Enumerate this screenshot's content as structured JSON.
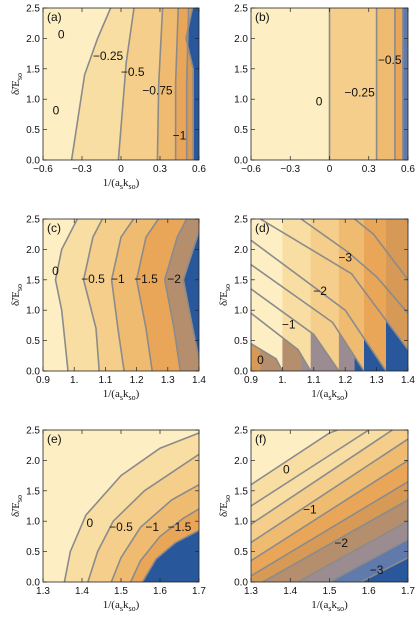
{
  "chart_data": [
    {
      "type": "contour",
      "panel_label": "(a)",
      "xlabel": "1/(a_s k_so)",
      "ylabel": "δ̃/E_so",
      "xlim": [
        -0.6,
        0.6
      ],
      "ylim": [
        0.0,
        2.5
      ],
      "xticks": [
        "-0.6",
        "-0.3",
        "0",
        "0.3",
        "0.6"
      ],
      "yticks": [
        "0.0",
        "0.5",
        "1.0",
        "1.5",
        "2.0",
        "2.5"
      ],
      "contour_levels": [
        "0",
        "0",
        "-0.25",
        "-0.5",
        "-0.75",
        "-1"
      ],
      "boundaries": [
        [
          [
            -0.38,
            0.0
          ],
          [
            -0.33,
            0.7
          ],
          [
            -0.28,
            1.4
          ],
          [
            -0.18,
            2.0
          ],
          [
            -0.08,
            2.5
          ]
        ],
        [
          [
            -0.02,
            0.0
          ],
          [
            0.01,
            0.8
          ],
          [
            0.04,
            1.6
          ],
          [
            0.1,
            2.5
          ]
        ],
        [
          [
            0.28,
            0.0
          ],
          [
            0.29,
            1.25
          ],
          [
            0.32,
            2.5
          ]
        ],
        [
          [
            0.42,
            0.0
          ],
          [
            0.42,
            1.25
          ],
          [
            0.44,
            2.5
          ]
        ],
        [
          [
            0.505,
            0.0
          ],
          [
            0.505,
            1.25
          ],
          [
            0.52,
            2.5
          ]
        ],
        [
          [
            0.555,
            0.0
          ],
          [
            0.555,
            1.5
          ],
          [
            0.5,
            2.0
          ],
          [
            0.55,
            2.5
          ]
        ]
      ]
    },
    {
      "type": "contour",
      "panel_label": "(b)",
      "xlabel": "",
      "ylabel": "",
      "xlim": [
        -0.6,
        0.6
      ],
      "ylim": [
        0.0,
        2.5
      ],
      "xticks": [
        "-0.6",
        "-0.3",
        "0",
        "0.3",
        "0.6"
      ],
      "yticks": [
        "0.0",
        "0.5",
        "1.0",
        "1.5",
        "2.0",
        "2.5"
      ],
      "contour_levels": [
        "0",
        "-0.25",
        "-0.5"
      ],
      "boundaries": [
        [
          [
            0.0,
            0.0
          ],
          [
            0.0,
            2.5
          ]
        ],
        [
          [
            0.36,
            0.0
          ],
          [
            0.36,
            2.5
          ]
        ],
        [
          [
            0.5,
            0.0
          ],
          [
            0.5,
            2.5
          ]
        ],
        [
          [
            0.56,
            0.0
          ],
          [
            0.56,
            2.5
          ]
        ]
      ]
    },
    {
      "type": "contour",
      "panel_label": "(c)",
      "xlabel": "1/(a_s k_so)",
      "ylabel": "δ̃/E_so",
      "xlim": [
        0.9,
        1.4
      ],
      "ylim": [
        0.0,
        2.5
      ],
      "xticks": [
        "0.9",
        "1.",
        "1.1",
        "1.2",
        "1.3",
        "1.4"
      ],
      "yticks": [
        "0.0",
        "0.5",
        "1.0",
        "1.5",
        "2.0",
        "2.5"
      ],
      "contour_levels": [
        "0",
        "-0.5",
        "-1",
        "-1.5",
        "-2"
      ],
      "boundaries": [
        [
          [
            0.98,
            0.0
          ],
          [
            0.96,
            1.0
          ],
          [
            0.94,
            1.5
          ],
          [
            0.96,
            2.0
          ],
          [
            1.01,
            2.5
          ]
        ],
        [
          [
            1.08,
            0.0
          ],
          [
            1.07,
            0.7
          ],
          [
            1.03,
            1.5
          ],
          [
            1.06,
            2.2
          ],
          [
            1.09,
            2.5
          ]
        ],
        [
          [
            1.16,
            0.0
          ],
          [
            1.14,
            0.7
          ],
          [
            1.12,
            1.5
          ],
          [
            1.15,
            2.2
          ],
          [
            1.19,
            2.5
          ]
        ],
        [
          [
            1.25,
            0.0
          ],
          [
            1.23,
            0.7
          ],
          [
            1.2,
            1.5
          ],
          [
            1.23,
            2.2
          ],
          [
            1.27,
            2.5
          ]
        ],
        [
          [
            1.34,
            0.0
          ],
          [
            1.32,
            0.7
          ],
          [
            1.29,
            1.5
          ],
          [
            1.33,
            2.2
          ],
          [
            1.36,
            2.5
          ]
        ],
        [
          [
            1.4,
            0.2
          ],
          [
            1.38,
            0.7
          ],
          [
            1.35,
            1.5
          ],
          [
            1.4,
            2.3
          ]
        ]
      ]
    },
    {
      "type": "contour",
      "panel_label": "(d)",
      "xlabel": "1/(a_s k_so)",
      "ylabel": "δ̃/E_so",
      "xlim": [
        0.9,
        1.4
      ],
      "ylim": [
        0.0,
        2.5
      ],
      "xticks": [
        "0.9",
        "1.",
        "1.1",
        "1.2",
        "1.3",
        "1.4"
      ],
      "yticks": [
        "0.0",
        "0.5",
        "1.0",
        "1.5",
        "2.0",
        "2.5"
      ],
      "contour_levels": [
        "0",
        "-1",
        "-2",
        "-3"
      ],
      "boundaries": [
        [
          [
            0.9,
            0.45
          ],
          [
            0.98,
            0.2
          ],
          [
            1.0,
            0.0
          ]
        ],
        [
          [
            0.9,
            0.95
          ],
          [
            1.05,
            0.35
          ],
          [
            1.09,
            0.0
          ]
        ],
        [
          [
            0.9,
            1.35
          ],
          [
            1.1,
            0.6
          ],
          [
            1.18,
            0.0
          ]
        ],
        [
          [
            0.9,
            1.75
          ],
          [
            1.16,
            0.8
          ],
          [
            1.26,
            0.0
          ]
        ],
        [
          [
            0.9,
            2.15
          ],
          [
            1.2,
            1.0
          ],
          [
            1.33,
            0.0
          ]
        ],
        [
          [
            0.93,
            2.5
          ],
          [
            1.22,
            1.6
          ],
          [
            1.27,
            1.25
          ],
          [
            1.4,
            0.35
          ]
        ],
        [
          [
            1.06,
            2.5
          ],
          [
            1.21,
            1.95
          ],
          [
            1.3,
            1.55
          ],
          [
            1.4,
            0.95
          ]
        ],
        [
          [
            1.23,
            2.5
          ],
          [
            1.29,
            2.25
          ],
          [
            1.4,
            1.5
          ]
        ]
      ]
    },
    {
      "type": "contour",
      "panel_label": "(e)",
      "xlabel": "1/(a_s k_so)",
      "ylabel": "δ̃/E_so",
      "xlim": [
        1.3,
        1.7
      ],
      "ylim": [
        0.0,
        2.5
      ],
      "xticks": [
        "1.3",
        "1.4",
        "1.5",
        "1.6",
        "1.7"
      ],
      "yticks": [
        "0.0",
        "0.5",
        "1.0",
        "1.5",
        "2.0",
        "2.5"
      ],
      "contour_levels": [
        "0",
        "-0.5",
        "-1",
        "-1.5"
      ],
      "boundaries": [
        [
          [
            1.355,
            0.0
          ],
          [
            1.37,
            0.5
          ],
          [
            1.41,
            1.1
          ],
          [
            1.5,
            1.75
          ],
          [
            1.6,
            2.2
          ],
          [
            1.7,
            2.45
          ]
        ],
        [
          [
            1.415,
            0.0
          ],
          [
            1.44,
            0.5
          ],
          [
            1.48,
            1.0
          ],
          [
            1.56,
            1.5
          ],
          [
            1.7,
            2.1
          ]
        ],
        [
          [
            1.475,
            0.0
          ],
          [
            1.5,
            0.4
          ],
          [
            1.55,
            0.9
          ],
          [
            1.63,
            1.35
          ],
          [
            1.7,
            1.6
          ]
        ],
        [
          [
            1.525,
            0.0
          ],
          [
            1.55,
            0.35
          ],
          [
            1.6,
            0.75
          ],
          [
            1.66,
            1.05
          ],
          [
            1.7,
            1.2
          ]
        ],
        [
          [
            1.555,
            0.0
          ],
          [
            1.59,
            0.38
          ],
          [
            1.64,
            0.65
          ],
          [
            1.7,
            0.85
          ]
        ]
      ]
    },
    {
      "type": "contour",
      "panel_label": "(f)",
      "xlabel": "1/(a_s k_so)",
      "ylabel": "δ̃/E_so",
      "xlim": [
        1.3,
        1.7
      ],
      "ylim": [
        0.0,
        2.5
      ],
      "xticks": [
        "1.3",
        "1.4",
        "1.5",
        "1.6",
        "1.7"
      ],
      "yticks": [
        "0.0",
        "0.5",
        "1.0",
        "1.5",
        "2.0",
        "2.5"
      ],
      "contour_levels": [
        "0",
        "-1",
        "-2",
        "-3"
      ],
      "boundaries": [
        [
          [
            1.3,
            1.6
          ],
          [
            1.5,
            2.45
          ],
          [
            1.52,
            2.5
          ]
        ],
        [
          [
            1.3,
            1.25
          ],
          [
            1.6,
            2.5
          ]
        ],
        [
          [
            1.3,
            0.95
          ],
          [
            1.66,
            2.5
          ]
        ],
        [
          [
            1.3,
            0.65
          ],
          [
            1.7,
            2.35
          ]
        ],
        [
          [
            1.3,
            0.35
          ],
          [
            1.7,
            2.0
          ]
        ],
        [
          [
            1.3,
            0.1
          ],
          [
            1.7,
            1.65
          ]
        ],
        [
          [
            1.33,
            0.0
          ],
          [
            1.7,
            1.35
          ]
        ],
        [
          [
            1.42,
            0.0
          ],
          [
            1.7,
            1.0
          ]
        ],
        [
          [
            1.5,
            0.0
          ],
          [
            1.7,
            0.7
          ]
        ],
        [
          [
            1.58,
            0.0
          ],
          [
            1.7,
            0.4
          ]
        ]
      ]
    }
  ],
  "fill_colors": [
    "#fdefc3",
    "#f8dea2",
    "#f4ce8a",
    "#eebb71",
    "#e9a658",
    "#d79a56",
    "#b48e6d",
    "#9b8c92",
    "#5f7aab",
    "#28579b"
  ],
  "line_color": "#8b8b8b"
}
